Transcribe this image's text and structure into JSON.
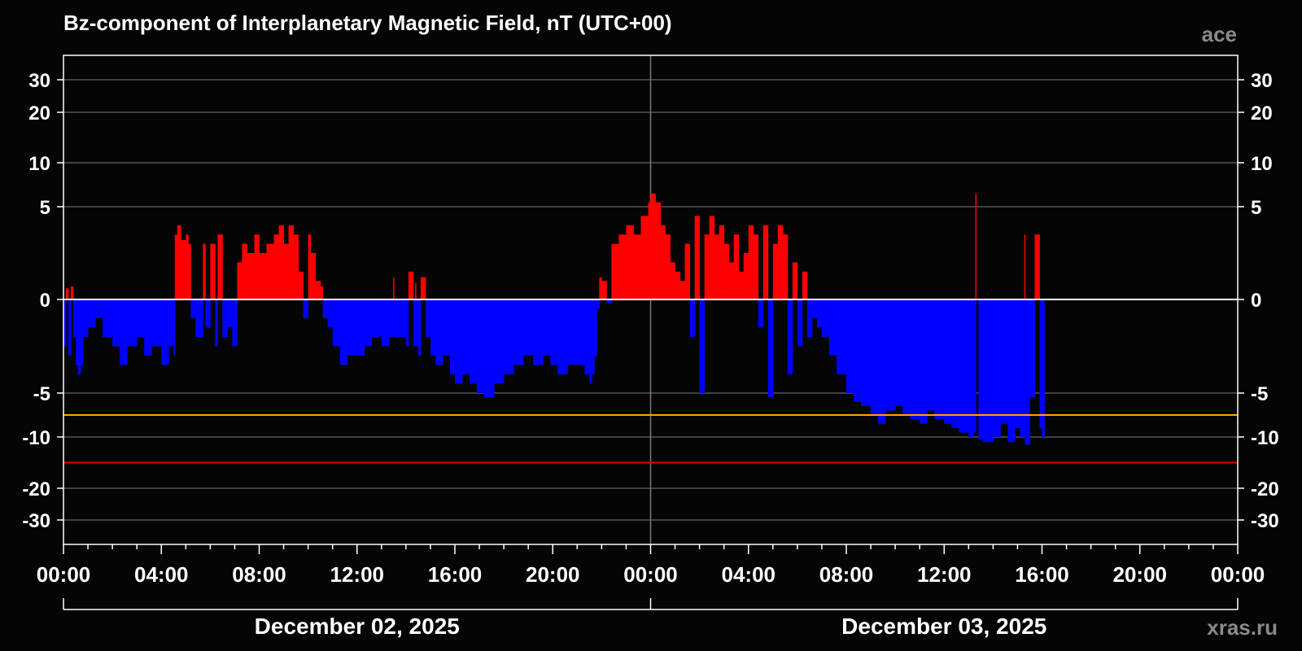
{
  "header": {
    "title": "Bz-component of Interplanetary Magnetic Field, nT (UTC+00)",
    "source_tag": "ace",
    "footer_credit": "xras.ru"
  },
  "colors": {
    "background": "#050505",
    "positive": "#ff0000",
    "negative": "#0000ff",
    "grid": "#7a7a7a",
    "frame": "#ffffff",
    "zero_line": "#ffffff",
    "threshold_warning": "#ffa500",
    "threshold_alert": "#e00000"
  },
  "chart_data": {
    "type": "area",
    "title": "Bz-component of Interplanetary Magnetic Field, nT (UTC+00)",
    "xlabel": "",
    "ylabel": "",
    "y_scale": "nonlinear (compressed at large magnitudes)",
    "ylim": [
      -40,
      40
    ],
    "y_ticks": [
      {
        "value": 30,
        "label": "30"
      },
      {
        "value": 20,
        "label": "20"
      },
      {
        "value": 10,
        "label": "10"
      },
      {
        "value": 5,
        "label": "5"
      },
      {
        "value": 0,
        "label": "0"
      },
      {
        "value": -5,
        "label": "-5"
      },
      {
        "value": -10,
        "label": "-10"
      },
      {
        "value": -20,
        "label": "-20"
      },
      {
        "value": -30,
        "label": "-30"
      }
    ],
    "x_range_hours": [
      0,
      48
    ],
    "x_tick_labels": [
      "00:00",
      "04:00",
      "08:00",
      "12:00",
      "16:00",
      "20:00",
      "00:00",
      "04:00",
      "08:00",
      "12:00",
      "16:00",
      "20:00",
      "00:00"
    ],
    "date_labels": [
      "December 02, 2025",
      "December 03, 2025"
    ],
    "threshold_lines": [
      {
        "name": "warning",
        "value": -7.5,
        "color": "#ffa500"
      },
      {
        "name": "alert",
        "value": -15,
        "color": "#e00000"
      }
    ],
    "grid": true,
    "legend": "none",
    "series": [
      {
        "hours": [
          0.0,
          0.1,
          0.2,
          0.3,
          0.4,
          0.5,
          0.6,
          0.7,
          0.8,
          1.0,
          1.3,
          1.6,
          2.0,
          2.3,
          2.6,
          3.0,
          3.3,
          3.6,
          4.0,
          4.3,
          4.5,
          4.55,
          4.65,
          4.8,
          5.0,
          5.1,
          5.2,
          5.4,
          5.7,
          5.8,
          6.0,
          6.2,
          6.3,
          6.5,
          6.7,
          6.9,
          7.1,
          7.3,
          7.5,
          7.8,
          8.0,
          8.3,
          8.6,
          8.8,
          9.0,
          9.2,
          9.4,
          9.6,
          9.8,
          10.0,
          10.1,
          10.3,
          10.5,
          10.6,
          10.8,
          11.0,
          11.3,
          11.6,
          12.0,
          12.3,
          12.6,
          13.0,
          13.3,
          13.6,
          14.0,
          14.1,
          14.3,
          14.5,
          14.6,
          14.8,
          15.0,
          15.2,
          15.5,
          15.8,
          16.0,
          16.3,
          16.6,
          16.9,
          17.2,
          17.4,
          17.6,
          18.0,
          18.4,
          18.8,
          19.2,
          19.6,
          19.9,
          20.2,
          20.6,
          21.0,
          21.3,
          21.5,
          21.6,
          21.7,
          21.8,
          21.9,
          22.0,
          22.2,
          22.4,
          22.7,
          23.0,
          23.3,
          23.6,
          23.9,
          24.0,
          24.2,
          24.4,
          24.6,
          24.8,
          25.0,
          25.2,
          25.4,
          25.6,
          25.8,
          26.0,
          26.2,
          26.4,
          26.6,
          26.8,
          27.0,
          27.2,
          27.4,
          27.6,
          27.8,
          28.0,
          28.2,
          28.4,
          28.6,
          28.8,
          29.0,
          29.2,
          29.4,
          29.6,
          29.8,
          30.0,
          30.2,
          30.4,
          30.6,
          30.8,
          31.0,
          31.3,
          31.6,
          32.0,
          32.3,
          32.6,
          33.0,
          33.3,
          33.6,
          34.0,
          34.3,
          34.6,
          35.0,
          35.3,
          35.6,
          36.0,
          36.3,
          36.6,
          37.0,
          37.2,
          37.3,
          37.4,
          37.6,
          38.0,
          38.3,
          38.6,
          38.9,
          39.1,
          39.3,
          39.5,
          39.7,
          39.9,
          40.0,
          40.1
        ],
        "bz": [
          -2.5,
          0.6,
          -3.0,
          0.7,
          -2.0,
          -3.5,
          -4.0,
          -3.5,
          -2.0,
          -1.5,
          -1.0,
          -2.0,
          -2.5,
          -3.5,
          -2.5,
          -2.0,
          -3.0,
          -2.5,
          -3.5,
          -2.5,
          -3.0,
          3.5,
          4.0,
          3.2,
          3.5,
          3.0,
          -1.0,
          -2.0,
          3.0,
          -1.5,
          3.0,
          -2.5,
          3.5,
          -2.0,
          -1.5,
          -2.5,
          2.0,
          3.0,
          2.5,
          3.5,
          2.5,
          3.0,
          3.5,
          4.0,
          3.0,
          4.0,
          3.5,
          1.5,
          -1.0,
          3.5,
          2.5,
          1.0,
          0.7,
          -1.0,
          -1.5,
          -2.5,
          -3.5,
          -3.0,
          -3.0,
          -2.5,
          -2.0,
          -2.5,
          -2.0,
          -2.0,
          -2.5,
          1.5,
          -2.5,
          -3.0,
          1.2,
          -2.0,
          -3.0,
          -3.5,
          -3.0,
          -4.0,
          -4.5,
          -4.0,
          -4.5,
          -5.0,
          -5.5,
          -5.5,
          -4.5,
          -4.0,
          -3.5,
          -3.0,
          -3.5,
          -3.0,
          -3.5,
          -4.0,
          -3.5,
          -3.5,
          -4.0,
          -4.5,
          -4.0,
          -3.0,
          -0.5,
          1.2,
          1.0,
          -0.2,
          3.0,
          3.5,
          4.0,
          3.5,
          4.5,
          5.5,
          6.5,
          5.5,
          4.0,
          3.5,
          2.0,
          1.5,
          1.0,
          3.0,
          -2.0,
          4.5,
          -5.0,
          3.5,
          4.5,
          3.5,
          4.0,
          3.0,
          2.0,
          3.5,
          1.5,
          2.5,
          4.0,
          3.5,
          -1.5,
          4.0,
          -5.5,
          3.0,
          4.0,
          3.5,
          -4.0,
          2.0,
          -2.5,
          1.5,
          -2.0,
          -1.0,
          -1.5,
          -2.0,
          -3.0,
          -4.0,
          -5.0,
          -6.0,
          -6.5,
          -7.5,
          -8.5,
          -7.0,
          -6.5,
          -7.5,
          -8.0,
          -8.5,
          -7.0,
          -8.0,
          -8.5,
          -9.0,
          -9.5,
          -10.0,
          -9.5,
          0.0,
          -10.5,
          -11.0,
          -10.0,
          -8.5,
          -11.0,
          -9.0,
          -10.0,
          -11.5,
          -5.5,
          3.5,
          -9.0,
          -10.0,
          -11.0,
          0.0
        ]
      }
    ],
    "spikes": [
      {
        "hour": 13.5,
        "bz": 1.2
      },
      {
        "hour": 14.4,
        "bz": 0.9
      },
      {
        "hour": 37.3,
        "bz": 6.5
      },
      {
        "hour": 39.3,
        "bz": 3.5
      }
    ]
  }
}
